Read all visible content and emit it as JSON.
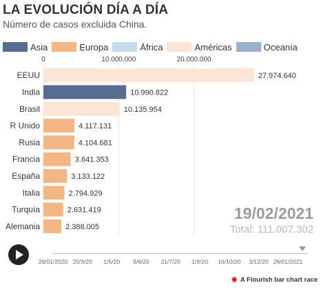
{
  "title": "LA EVOLUCIÓN DÍA A DÍA",
  "subtitle": "Número de casos excluida China.",
  "legend": [
    {
      "label": "Asia",
      "color": "#566c90"
    },
    {
      "label": "Europa",
      "color": "#f3b786"
    },
    {
      "label": "África",
      "color": "#c5dbe9"
    },
    {
      "label": "Américas",
      "color": "#fae5d6"
    },
    {
      "label": "Oceanía",
      "color": "#9ab0cc"
    }
  ],
  "chart_data": {
    "type": "bar",
    "orientation": "horizontal",
    "categories": [
      "EEUU",
      "India",
      "Brasil",
      "R Unido",
      "Rusia",
      "Francia",
      "España",
      "Italia",
      "Turquía",
      "Alemania"
    ],
    "values": [
      27974640,
      10990822,
      10135954,
      4117131,
      4104681,
      3641353,
      3133122,
      2794929,
      2631419,
      2388005
    ],
    "value_labels": [
      "27.974.640",
      "10.990.822",
      "10.135.954",
      "4.117.131",
      "4.104.681",
      "3.641.353",
      "3.133.122",
      "2.794.929",
      "2.631.419",
      "2.388.005"
    ],
    "regions": [
      "Américas",
      "Asia",
      "Américas",
      "Europa",
      "Europa",
      "Europa",
      "Europa",
      "Europa",
      "Europa",
      "Europa"
    ],
    "xlim": [
      0,
      28000000
    ],
    "x_ticks": [
      0,
      10000000,
      20000000
    ],
    "x_tick_labels": [
      "0",
      "10.000.000",
      "20.000.000"
    ],
    "grid": true
  },
  "current_date": "19/02/2021",
  "total_label": "Total: 111.007.302",
  "timeline": {
    "labels": [
      "26/01/2020",
      "20/3/20",
      "1/5/20",
      "9/6/20",
      "21/7/20",
      "1/9/20",
      "16/10/20",
      "3/12/20",
      "26/01/2021"
    ],
    "position": 0.97
  },
  "credit": "A Flourish bar chart race"
}
